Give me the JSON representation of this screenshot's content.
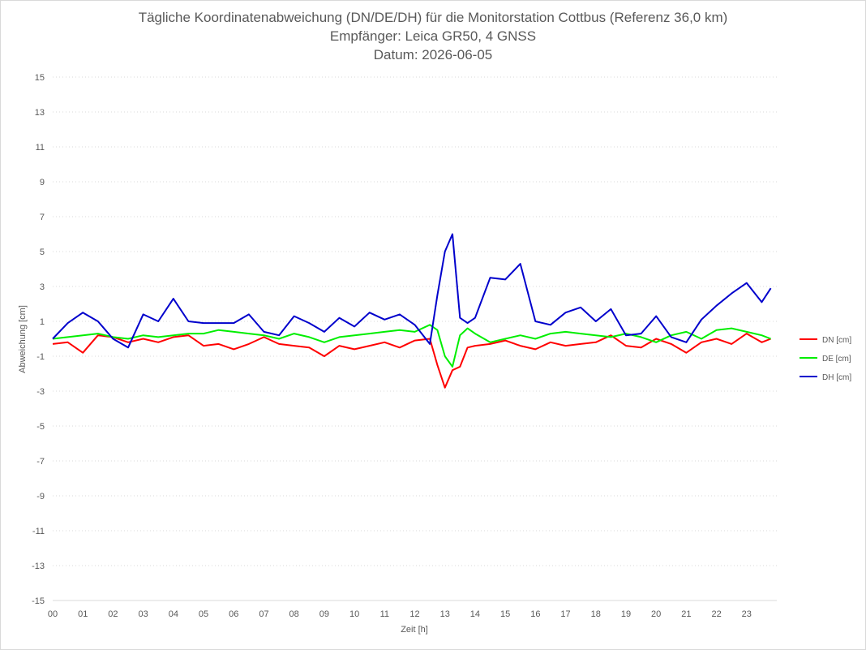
{
  "chart_data": {
    "type": "line",
    "title": "Tägliche Koordinatenabweichung (DN/DE/DH) für die Monitorstation Cottbus (Referenz 36,0 km)",
    "subtitle_1": "Empfänger: Leica GR50, 4 GNSS",
    "subtitle_2": "Datum: 2026-06-05",
    "xlabel": "Zeit [h]",
    "ylabel": "Abweichung [cm]",
    "xlim": [
      0,
      24
    ],
    "ylim": [
      -15,
      15
    ],
    "x_ticks": [
      "00",
      "01",
      "02",
      "03",
      "04",
      "05",
      "06",
      "07",
      "08",
      "09",
      "10",
      "11",
      "12",
      "13",
      "14",
      "15",
      "16",
      "17",
      "18",
      "19",
      "20",
      "21",
      "22",
      "23"
    ],
    "y_ticks": [
      15,
      13,
      11,
      9,
      7,
      5,
      3,
      1,
      -1,
      -3,
      -5,
      -7,
      -9,
      -11,
      -13,
      -15
    ],
    "grid": "horizontal dotted",
    "legend_position": "right",
    "x": [
      0,
      0.5,
      1,
      1.5,
      2,
      2.5,
      3,
      3.5,
      4,
      4.5,
      5,
      5.5,
      6,
      6.5,
      7,
      7.5,
      8,
      8.5,
      9,
      9.5,
      10,
      10.5,
      11,
      11.5,
      12,
      12.5,
      12.75,
      13,
      13.25,
      13.5,
      13.75,
      14,
      14.5,
      15,
      15.5,
      16,
      16.5,
      17,
      17.5,
      18,
      18.5,
      19,
      19.5,
      20,
      20.5,
      21,
      21.5,
      22,
      22.5,
      23,
      23.5,
      23.8
    ],
    "series": [
      {
        "name": "DN [cm]",
        "color": "#ff0000",
        "values": [
          -0.3,
          -0.2,
          -0.8,
          0.2,
          0.1,
          -0.2,
          0.0,
          -0.2,
          0.1,
          0.2,
          -0.4,
          -0.3,
          -0.6,
          -0.3,
          0.1,
          -0.3,
          -0.4,
          -0.5,
          -1.0,
          -0.4,
          -0.6,
          -0.4,
          -0.2,
          -0.5,
          -0.1,
          0.0,
          -1.5,
          -2.8,
          -1.8,
          -1.6,
          -0.5,
          -0.4,
          -0.3,
          -0.1,
          -0.4,
          -0.6,
          -0.2,
          -0.4,
          -0.3,
          -0.2,
          0.2,
          -0.4,
          -0.5,
          0.0,
          -0.3,
          -0.8,
          -0.2,
          0.0,
          -0.3,
          0.3,
          -0.2,
          0.0
        ]
      },
      {
        "name": "DE [cm]",
        "color": "#00ee00",
        "values": [
          0.0,
          0.1,
          0.2,
          0.3,
          0.1,
          0.0,
          0.2,
          0.1,
          0.2,
          0.3,
          0.3,
          0.5,
          0.4,
          0.3,
          0.2,
          0.0,
          0.3,
          0.1,
          -0.2,
          0.1,
          0.2,
          0.3,
          0.4,
          0.5,
          0.4,
          0.8,
          0.5,
          -1.0,
          -1.6,
          0.2,
          0.6,
          0.3,
          -0.2,
          0.0,
          0.2,
          0.0,
          0.3,
          0.4,
          0.3,
          0.2,
          0.1,
          0.3,
          0.1,
          -0.2,
          0.2,
          0.4,
          0.0,
          0.5,
          0.6,
          0.4,
          0.2,
          0.0
        ]
      },
      {
        "name": "DH [cm]",
        "color": "#0000cc",
        "values": [
          0.0,
          0.9,
          1.5,
          1.0,
          0.0,
          -0.5,
          1.4,
          1.0,
          2.3,
          1.0,
          0.9,
          0.9,
          0.9,
          1.4,
          0.4,
          0.2,
          1.3,
          0.9,
          0.4,
          1.2,
          0.7,
          1.5,
          1.1,
          1.4,
          0.8,
          -0.3,
          2.5,
          5.0,
          6.0,
          1.2,
          0.9,
          1.2,
          3.5,
          3.4,
          4.3,
          1.0,
          0.8,
          1.5,
          1.8,
          1.0,
          1.7,
          0.2,
          0.3,
          1.3,
          0.1,
          -0.2,
          1.1,
          1.9,
          2.6,
          3.2,
          2.1,
          2.9
        ]
      }
    ]
  }
}
